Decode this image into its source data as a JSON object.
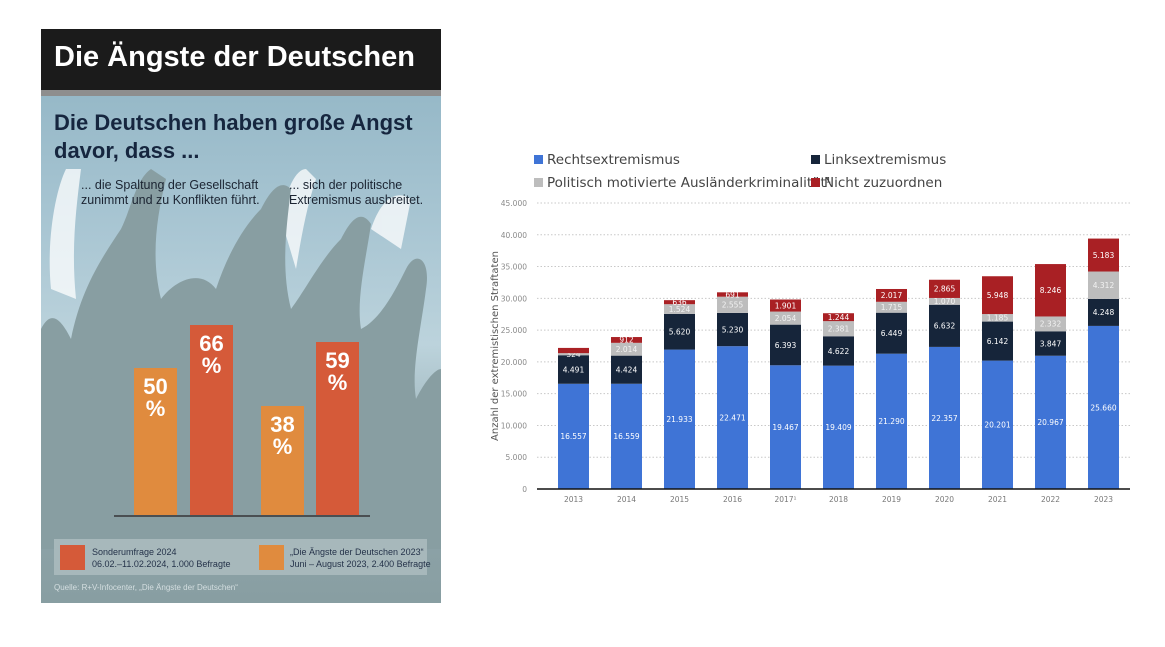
{
  "infographic": {
    "title": "Die Ängste der Deutschen",
    "subtitle": "Die Deutschen haben große Angst davor, dass ...",
    "captions": [
      "... die Spaltung der Gesellschaft zunimmt und zu Konflikten führt.",
      "... sich der politische Extremismus ausbreitet."
    ],
    "colors": {
      "survey_2024": "#d55a39",
      "survey_2023": "#e08b3e",
      "header": "#1b1b1b"
    },
    "legend": [
      {
        "name": "Sonderumfrage 2024",
        "detail": "06.02.–11.02.2024, 1.000 Befragte"
      },
      {
        "name": "„Die Ängste der Deutschen 2023“",
        "detail": "Juni – August 2023, 2.400 Befragte"
      }
    ],
    "source": "Quelle: R+V-Infocenter, „Die Ängste der Deutschen“"
  },
  "chart_data": [
    {
      "type": "bar",
      "title": "Die Ängste der Deutschen",
      "categories": [
        "Spaltung der Gesellschaft",
        "Politischer Extremismus"
      ],
      "series": [
        {
          "name": "„Die Ängste der Deutschen 2023“",
          "values": [
            50,
            38
          ],
          "labels": [
            "50 %",
            "38 %"
          ]
        },
        {
          "name": "Sonderumfrage 2024",
          "values": [
            66,
            59
          ],
          "labels": [
            "66 %",
            "59 %"
          ]
        }
      ],
      "ylabel": "%",
      "ylim": [
        0,
        100
      ]
    },
    {
      "type": "bar",
      "stacked": true,
      "title": "",
      "xlabel": "",
      "ylabel": "Anzahl der extremistischen Straftaten",
      "ylim": [
        0,
        45000
      ],
      "yticks": [
        0,
        5000,
        10000,
        15000,
        20000,
        25000,
        30000,
        35000,
        40000,
        45000
      ],
      "ytick_labels": [
        "0",
        "5.000",
        "10.000",
        "15.000",
        "20.000",
        "25.000",
        "30.000",
        "35.000",
        "40.000",
        "45.000"
      ],
      "grid": true,
      "legend_position": "top",
      "categories": [
        "2013",
        "2014",
        "2015",
        "2016",
        "2017¹",
        "2018",
        "2019",
        "2020",
        "2021",
        "2022",
        "2023"
      ],
      "series": [
        {
          "name": "Rechtsextremismus",
          "color": "#3f74d6",
          "values": [
            16557,
            16559,
            21933,
            22471,
            19467,
            19409,
            21290,
            22357,
            20201,
            20967,
            25660
          ],
          "labels": [
            "16.557",
            "16.559",
            "21.933",
            "22.471",
            "19.467",
            "19.409",
            "21.290",
            "22.357",
            "20.201",
            "20.967",
            "25.660"
          ]
        },
        {
          "name": "Linksextremismus",
          "color": "#16253a",
          "values": [
            4491,
            4424,
            5620,
            5230,
            6393,
            4622,
            6449,
            6632,
            6142,
            3847,
            4248
          ],
          "labels": [
            "4.491",
            "4.424",
            "5.620",
            "5.230",
            "6.393",
            "4.622",
            "6.449",
            "6.632",
            "6.142",
            "3.847",
            "4.248"
          ]
        },
        {
          "name": "Politisch motivierte Ausländerkriminalität¹",
          "color": "#bdbdbd",
          "values": [
            324,
            2014,
            1524,
            2555,
            2054,
            2381,
            1715,
            1070,
            1185,
            2332,
            4312
          ],
          "labels": [
            "324",
            "2.014",
            "1.524",
            "2.555",
            "2.054",
            "2.381",
            "1.715",
            "1.070",
            "1.185",
            "2.332",
            "4.312"
          ]
        },
        {
          "name": "Nicht zuzuordnen",
          "color": "#a92024",
          "values": [
            827,
            912,
            636,
            691,
            1901,
            1244,
            2017,
            2865,
            5948,
            8246,
            5183
          ],
          "labels": [
            "",
            "912",
            "636",
            "691",
            "1.901",
            "1.244",
            "2.017",
            "2.865",
            "5.948",
            "8.246",
            "5.183"
          ]
        }
      ]
    }
  ]
}
